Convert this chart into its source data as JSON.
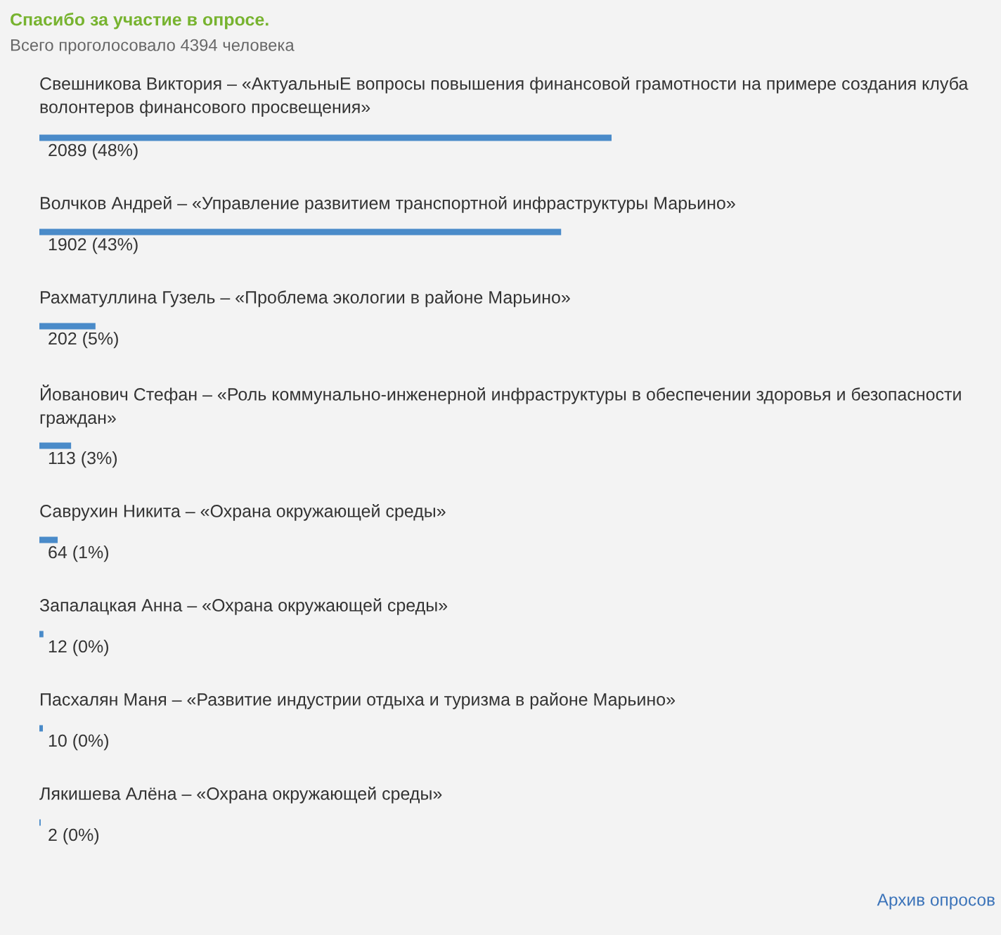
{
  "chart_data": {
    "type": "bar",
    "orientation": "horizontal",
    "title": "Спасибо за участие в опросе.",
    "subtitle": "Всего проголосовало 4394 человека",
    "categories": [
      "Свешникова Виктория – «АктуальныЕ вопросы повышения финансовой грамотности на примере создания клуба волонтеров финансового просвещения»",
      "Волчков Андрей – «Управление развитием транспортной инфраструктуры Марьино»",
      "Рахматуллина Гузель – «Проблема экологии в районе Марьино»",
      "Йованович Стефан – «Роль коммунально-инженерной инфраструктуры в обеспечении здоровья и безопасности граждан»",
      "Саврухин Никита – «Охрана окружающей среды»",
      "Запалацкая Анна – «Охрана окружающей среды»",
      "Пасхалян Маня – «Развитие индустрии отдыха и туризма в районе Марьино»",
      "Лякишева Алёна – «Охрана окружающей среды»"
    ],
    "values": [
      2089,
      1902,
      202,
      113,
      64,
      12,
      10,
      2
    ],
    "color": "#4a8bc9",
    "value_labels": [
      "2089 (48%)",
      "1902 (43%)",
      "202 (5%)",
      "113 (3%)",
      "64 (1%)",
      "12 (0%)",
      "10 (0%)",
      "2 (0%)"
    ],
    "tick_labels": "y",
    "annotations": [
      "Архив опросов"
    ]
  }
}
